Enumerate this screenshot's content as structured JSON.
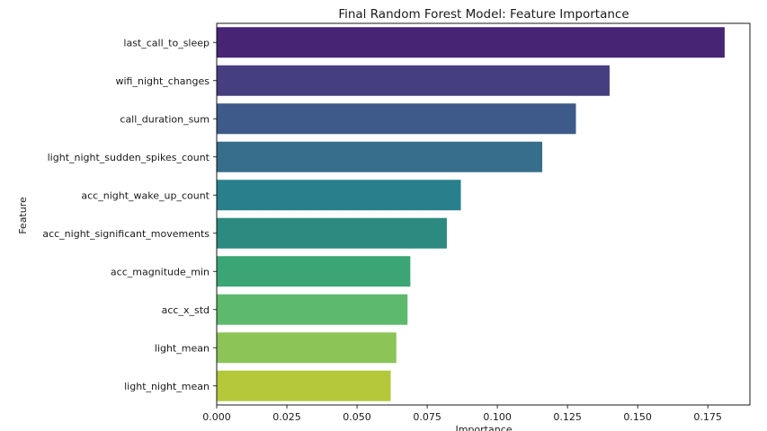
{
  "chart_data": {
    "type": "bar",
    "orientation": "horizontal",
    "title": "Final Random Forest Model: Feature Importance",
    "xlabel": "Importance",
    "ylabel": "Feature",
    "xlim": [
      0,
      0.19
    ],
    "xticks": [
      "0.000",
      "0.025",
      "0.050",
      "0.075",
      "0.100",
      "0.125",
      "0.150",
      "0.175"
    ],
    "grid": false,
    "categories": [
      "last_call_to_sleep",
      "wifi_night_changes",
      "call_duration_sum",
      "light_night_sudden_spikes_count",
      "acc_night_wake_up_count",
      "acc_night_significant_movements",
      "acc_magnitude_min",
      "acc_x_std",
      "light_mean",
      "light_night_mean"
    ],
    "values": [
      0.181,
      0.14,
      0.128,
      0.116,
      0.087,
      0.082,
      0.069,
      0.068,
      0.064,
      0.062
    ],
    "colors": [
      "#482475",
      "#453f80",
      "#3e5a8a",
      "#366e8b",
      "#2a7f8d",
      "#2d8a80",
      "#3ba576",
      "#5db96b",
      "#8cc458",
      "#b4c83a"
    ]
  }
}
